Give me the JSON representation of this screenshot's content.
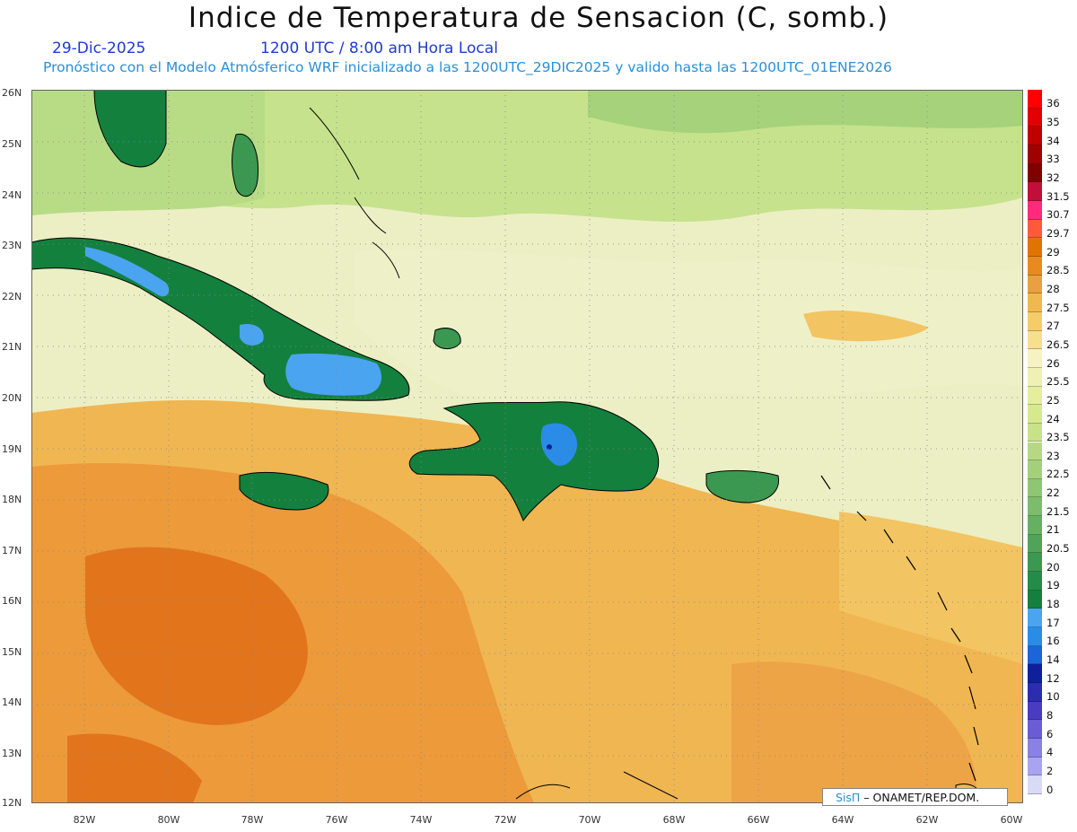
{
  "title": "Indice de Temperatura de Sensacion (C, somb.)",
  "date_label": "29-Dic-2025",
  "time_label": "1200 UTC / 8:00 am Hora Local",
  "subtitle": "Pronóstico con el Modelo Atmósferico WRF inicializado a las 1200UTC_29DIC2025 y valido hasta las  1200UTC_01ENE2026",
  "credit": {
    "brand": "SisΠ",
    "text": "– ONAMET/REP.DOM."
  },
  "lat_labels": [
    "26N",
    "25N",
    "24N",
    "23N",
    "22N",
    "21N",
    "20N",
    "19N",
    "18N",
    "17N",
    "16N",
    "15N",
    "14N",
    "13N",
    "12N"
  ],
  "lon_labels": [
    "82W",
    "80W",
    "78W",
    "76W",
    "74W",
    "72W",
    "70W",
    "68W",
    "66W",
    "64W",
    "62W",
    "60W"
  ],
  "colorbar": {
    "labels": [
      "36",
      "35",
      "34",
      "33",
      "32",
      "31.5",
      "30.7",
      "29.7",
      "29",
      "28.5",
      "28",
      "27.5",
      "27",
      "26.5",
      "26",
      "25.5",
      "25",
      "24",
      "23.5",
      "23",
      "22.5",
      "22",
      "21.5",
      "21",
      "20.5",
      "20",
      "19",
      "18",
      "17",
      "16",
      "14",
      "12",
      "10",
      "8",
      "6",
      "4",
      "2",
      "0"
    ],
    "colors": [
      "#ff0000",
      "#e00000",
      "#c00000",
      "#a00000",
      "#800000",
      "#c0103a",
      "#ff2a7a",
      "#ff5a3a",
      "#e07400",
      "#e88a20",
      "#eaa040",
      "#f2b850",
      "#f4cc6a",
      "#f6e08e",
      "#f6f2c4",
      "#eef0b4",
      "#e4ee9c",
      "#d6ea8c",
      "#c8e288",
      "#b6d880",
      "#a4d07a",
      "#90c672",
      "#7cbc6c",
      "#66b064",
      "#50a45a",
      "#3a9850",
      "#228c48",
      "#14803e",
      "#4aa4f0",
      "#2a8ce6",
      "#1a66d8",
      "#10209a",
      "#2c2cb0",
      "#4a3cc0",
      "#6a5cd4",
      "#8a80e6",
      "#a8a4f0",
      "#d8daf6"
    ]
  },
  "map": {
    "lat_range": [
      12,
      26
    ],
    "lon_range": [
      -83,
      -60
    ],
    "background_color": "#ecefc4",
    "fill_zones": [
      {
        "name": "north-band",
        "color": "#c6e28c"
      },
      {
        "name": "northeast-band",
        "color": "#a6d27c"
      },
      {
        "name": "central-band",
        "color": "#eef0c8"
      },
      {
        "name": "southwest-warm",
        "color": "#f0b652"
      },
      {
        "name": "southwest-hot",
        "color": "#ec9a3a"
      },
      {
        "name": "southwest-hottest",
        "color": "#e2741c"
      },
      {
        "name": "southeast-warm",
        "color": "#f2c462"
      },
      {
        "name": "southeast-hot",
        "color": "#eda446"
      }
    ],
    "islands": [
      "Cuba",
      "Jamaica",
      "Hispaniola",
      "Puerto Rico",
      "Bahamas",
      "Florida",
      "Lesser Antilles"
    ],
    "cold_spots": [
      {
        "name": "cuba-west",
        "color": "#4aa4f0"
      },
      {
        "name": "cuba-east",
        "color": "#4aa4f0"
      },
      {
        "name": "hispaniola-peak",
        "color": "#1a66d8"
      }
    ]
  }
}
